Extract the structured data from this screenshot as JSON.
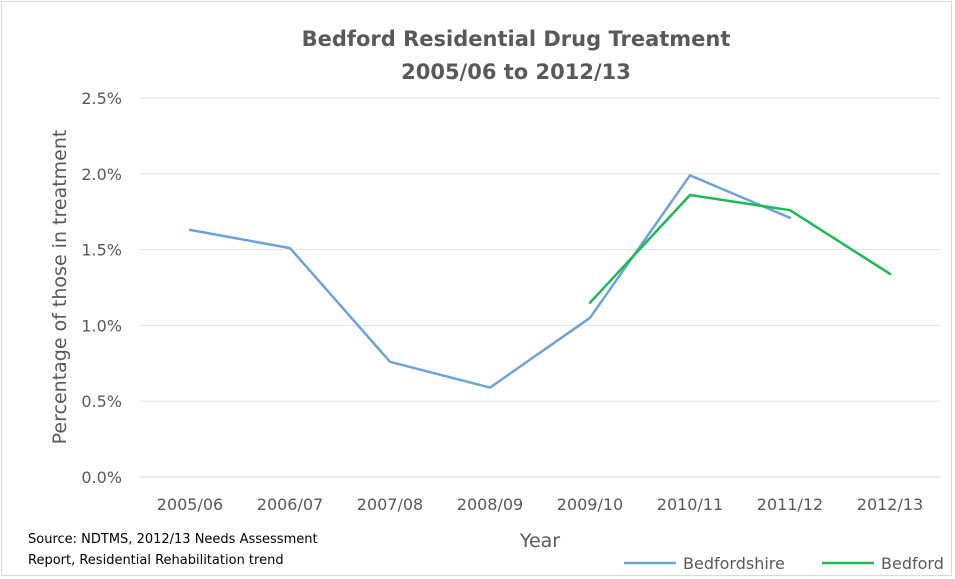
{
  "chart_data": {
    "type": "line",
    "title": [
      "Bedford Residential Drug Treatment",
      "2005/06 to 2012/13"
    ],
    "xlabel": "Year",
    "ylabel": "Percentage of those in treatment",
    "categories": [
      "2005/06",
      "2006/07",
      "2007/08",
      "2008/09",
      "2009/10",
      "2010/11",
      "2011/12",
      "2012/13"
    ],
    "y_ticks": [
      "0.0%",
      "0.5%",
      "1.0%",
      "1.5%",
      "2.0%",
      "2.5%"
    ],
    "ylim": [
      0,
      2.5
    ],
    "y_unit": "%",
    "grid": "horizontal",
    "legend_position": "bottom-right",
    "series": [
      {
        "name": "Bedfordshire",
        "color": "#6fa3d8",
        "values": [
          1.63,
          1.51,
          0.76,
          0.59,
          1.05,
          1.99,
          1.71,
          null
        ]
      },
      {
        "name": "Bedford",
        "color": "#1db954",
        "values": [
          null,
          null,
          null,
          null,
          1.15,
          1.86,
          1.76,
          1.34
        ]
      }
    ]
  },
  "source_note": [
    "Source: NDTMS, 2012/13  Needs Assessment",
    "Report, Residential Rehabilitation trend"
  ]
}
